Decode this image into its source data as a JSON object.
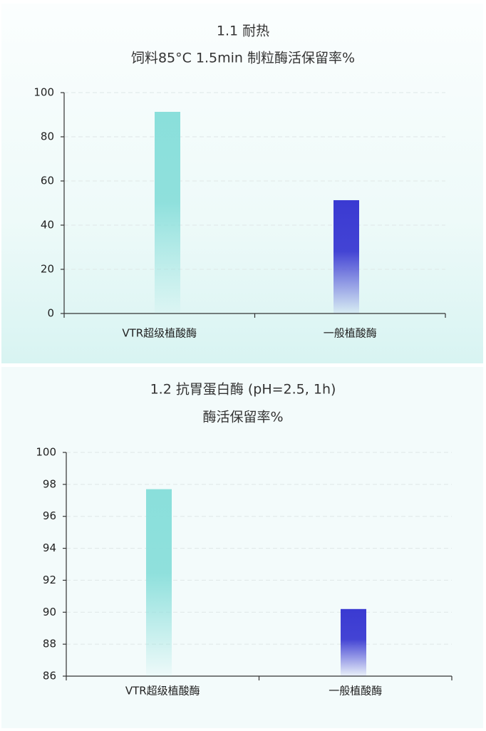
{
  "chart_data": [
    {
      "type": "bar",
      "title": "1.1 耐热",
      "subtitle": "饲料85°C 1.5min 制粒酶活保留率%",
      "categories": [
        "VTR超级植酸酶",
        "一般植酸酶"
      ],
      "values": [
        91.3,
        51.3
      ],
      "colors": [
        "#8adfdb",
        "#3a3ad2"
      ],
      "ylim": [
        0,
        100
      ],
      "yticks": [
        0,
        20,
        40,
        60,
        80,
        100
      ],
      "grid": true
    },
    {
      "type": "bar",
      "title": "1.2 抗胃蛋白酶 (pH=2.5, 1h)",
      "subtitle": "酶活保留率%",
      "categories": [
        "VTR超级植酸酶",
        "一般植酸酶"
      ],
      "values": [
        97.7,
        90.2
      ],
      "colors": [
        "#8adfdb",
        "#3a3ad2"
      ],
      "ylim": [
        86,
        100
      ],
      "yticks": [
        86,
        88,
        90,
        92,
        94,
        96,
        98,
        100
      ],
      "grid": true
    }
  ]
}
